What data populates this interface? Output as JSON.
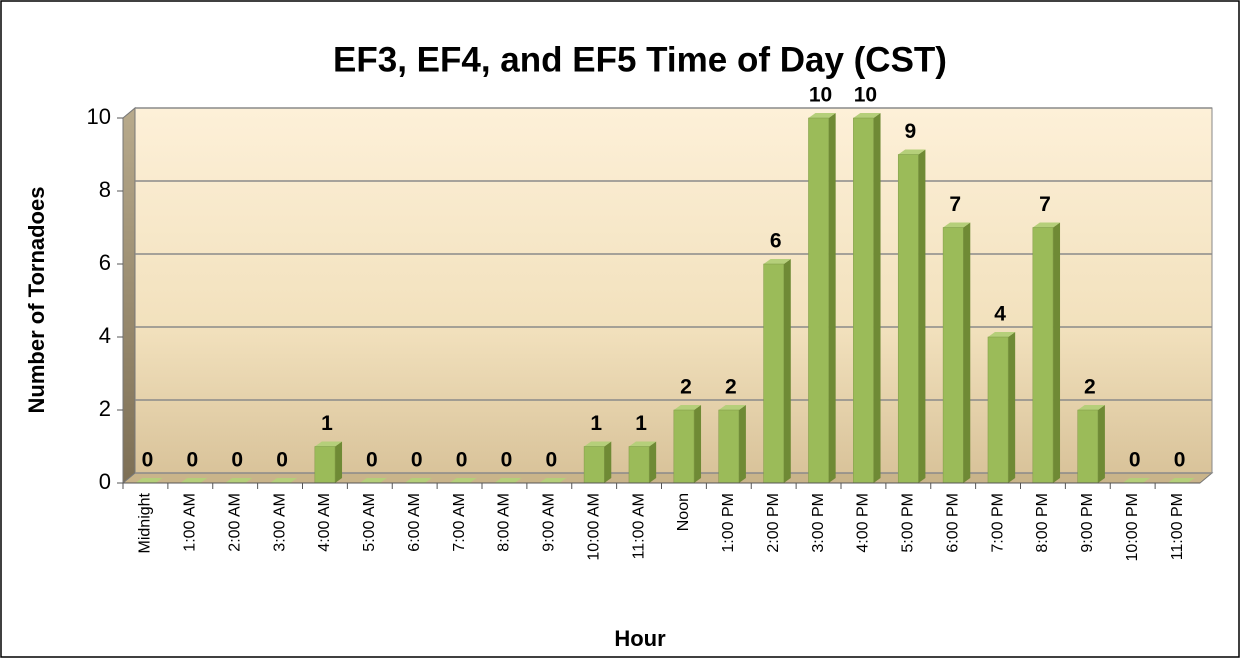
{
  "chart_data": {
    "type": "bar",
    "title": "EF3, EF4, and EF5 Time of Day (CST)",
    "x_label": "Hour",
    "y_label": "Number of Tornadoes",
    "categories": [
      "Midnight",
      "1:00 AM",
      "2:00 AM",
      "3:00 AM",
      "4:00 AM",
      "5:00 AM",
      "6:00 AM",
      "7:00 AM",
      "8:00 AM",
      "9:00 AM",
      "10:00 AM",
      "11:00 AM",
      "Noon",
      "1:00 PM",
      "2:00 PM",
      "3:00 PM",
      "4:00 PM",
      "5:00 PM",
      "6:00 PM",
      "7:00 PM",
      "8:00 PM",
      "9:00 PM",
      "10:00 PM",
      "11:00 PM"
    ],
    "values": [
      0,
      0,
      0,
      0,
      1,
      0,
      0,
      0,
      0,
      0,
      1,
      1,
      2,
      2,
      6,
      10,
      10,
      9,
      7,
      4,
      7,
      2,
      0,
      0
    ],
    "color": "#9bbb59",
    "ylim": [
      0,
      10
    ],
    "yticks": [
      0,
      2,
      4,
      6,
      8,
      10
    ],
    "grid": true
  }
}
